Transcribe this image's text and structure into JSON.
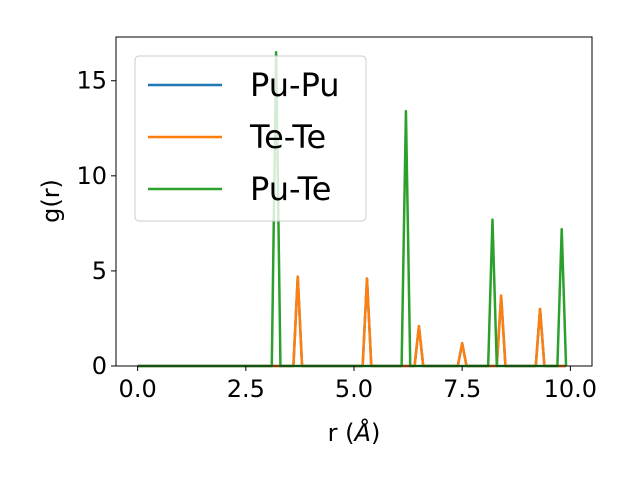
{
  "chart_data": {
    "type": "line",
    "xlabel": "r (",
    "xlabel_unit": "Å",
    "xlabel_close": ")",
    "ylabel": "g(r)",
    "xlim": [
      -0.5,
      10.5
    ],
    "ylim": [
      0,
      17.3
    ],
    "xticks": [
      "0.0",
      "2.5",
      "5.0",
      "7.5",
      "10.0"
    ],
    "xtick_values": [
      0,
      2.5,
      5,
      7.5,
      10
    ],
    "yticks": [
      "0",
      "5",
      "10",
      "15"
    ],
    "ytick_values": [
      0,
      5,
      10,
      15
    ],
    "grid": false,
    "legend_position": "top-left",
    "series": [
      {
        "name": "Pu-Pu",
        "color": "#1f77b4",
        "points": [
          [
            0,
            0
          ],
          [
            3.6,
            0
          ],
          [
            3.7,
            4.7
          ],
          [
            3.8,
            0
          ],
          [
            5.2,
            0
          ],
          [
            5.3,
            4.6
          ],
          [
            5.4,
            0
          ],
          [
            6.4,
            0
          ],
          [
            6.5,
            2.1
          ],
          [
            6.6,
            0
          ],
          [
            7.4,
            0
          ],
          [
            7.5,
            1.2
          ],
          [
            7.6,
            0
          ],
          [
            8.3,
            0
          ],
          [
            8.4,
            3.7
          ],
          [
            8.5,
            0
          ],
          [
            9.2,
            0
          ],
          [
            9.3,
            3.0
          ],
          [
            9.4,
            0
          ],
          [
            9.9,
            0
          ]
        ]
      },
      {
        "name": "Te-Te",
        "color": "#ff7f0e",
        "points": [
          [
            0,
            0
          ],
          [
            3.6,
            0
          ],
          [
            3.7,
            4.7
          ],
          [
            3.8,
            0
          ],
          [
            5.2,
            0
          ],
          [
            5.3,
            4.6
          ],
          [
            5.4,
            0
          ],
          [
            6.4,
            0
          ],
          [
            6.5,
            2.1
          ],
          [
            6.6,
            0
          ],
          [
            7.4,
            0
          ],
          [
            7.5,
            1.2
          ],
          [
            7.6,
            0
          ],
          [
            8.3,
            0
          ],
          [
            8.4,
            3.7
          ],
          [
            8.5,
            0
          ],
          [
            9.2,
            0
          ],
          [
            9.3,
            3.0
          ],
          [
            9.4,
            0
          ],
          [
            9.9,
            0
          ]
        ]
      },
      {
        "name": "Pu-Te",
        "color": "#2ca02c",
        "points": [
          [
            0,
            0
          ],
          [
            3.1,
            0
          ],
          [
            3.2,
            16.5
          ],
          [
            3.3,
            0
          ],
          [
            6.1,
            0
          ],
          [
            6.2,
            13.4
          ],
          [
            6.3,
            0
          ],
          [
            8.1,
            0
          ],
          [
            8.2,
            7.7
          ],
          [
            8.3,
            0
          ],
          [
            9.7,
            0
          ],
          [
            9.8,
            7.2
          ],
          [
            9.9,
            0
          ]
        ]
      }
    ]
  }
}
